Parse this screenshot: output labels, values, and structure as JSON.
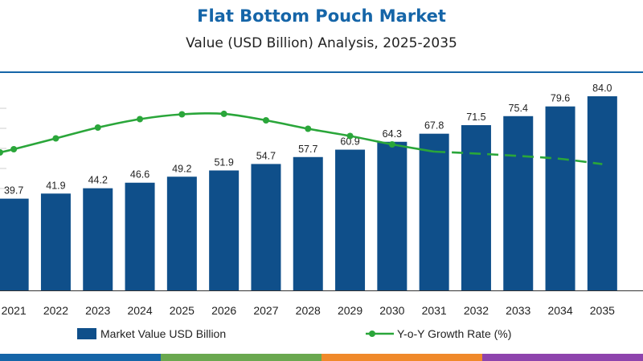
{
  "chart_data": {
    "type": "bar",
    "title": "Flat Bottom Pouch Market",
    "subtitle": "Value (USD Billion) Analysis, 2025-2035",
    "categories": [
      "2021",
      "2022",
      "2023",
      "2024",
      "2025",
      "2026",
      "2027",
      "2028",
      "2029",
      "2030",
      "2031",
      "2032",
      "2033",
      "2034",
      "2035"
    ],
    "series": [
      {
        "name": "Market Value USD Billion",
        "type": "bar",
        "values": [
          39.7,
          41.9,
          44.2,
          46.6,
          49.2,
          51.9,
          54.7,
          57.7,
          60.9,
          64.3,
          67.8,
          71.5,
          75.4,
          79.6,
          84.0
        ],
        "value_labels": [
          "39.7",
          "41.9",
          "44.2",
          "46.6",
          "49.2",
          "51.9",
          "54.7",
          "57.7",
          "60.9",
          "64.3",
          "67.8",
          "71.5",
          "75.4",
          "79.6",
          "84.0"
        ],
        "color": "#0f4f8a"
      },
      {
        "name": "Y-o-Y Growth Rate (%)",
        "type": "line",
        "axis": "secondary",
        "values": [
          5.0,
          5.45,
          5.9,
          6.25,
          6.45,
          6.47,
          6.2,
          5.85,
          5.55,
          5.2,
          4.9,
          4.82,
          4.72,
          4.6,
          4.38
        ],
        "solid_until_index": 10,
        "dashed_from_index": 10,
        "color": "#2aa63a"
      }
    ],
    "ylim": [
      0,
      90
    ],
    "y2lim": [
      0,
      8
    ],
    "grid": false,
    "legend": "bottom"
  },
  "colors": {
    "title": "#1565a8",
    "bar": "#0f4f8a",
    "line": "#2aa63a",
    "strip": [
      "#1565a8",
      "#6aa84f",
      "#f0892a",
      "#8e44ad"
    ]
  }
}
